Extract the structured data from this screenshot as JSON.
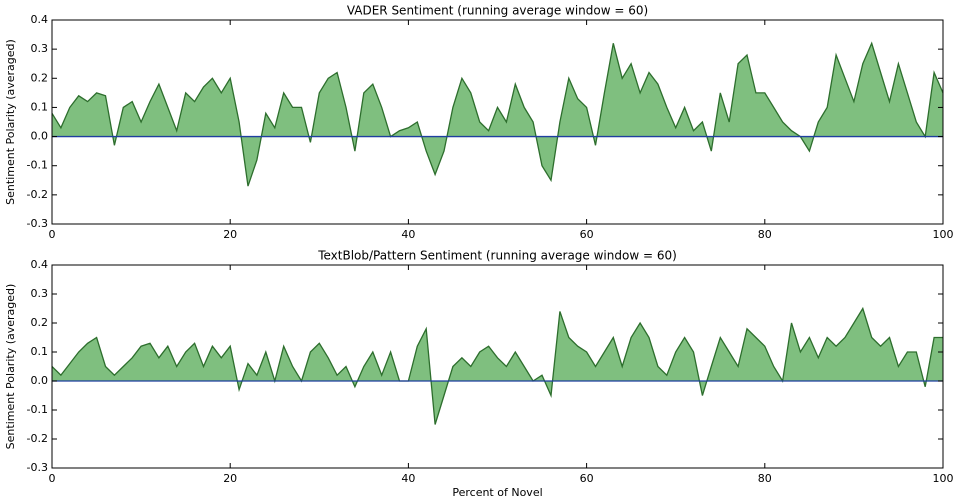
{
  "chart_data": [
    {
      "type": "area",
      "title": "VADER Sentiment (running average window = 60)",
      "ylabel": "Sentiment Polarity (averaged)",
      "x": [
        0,
        1,
        2,
        3,
        4,
        5,
        6,
        7,
        8,
        9,
        10,
        11,
        12,
        13,
        14,
        15,
        16,
        17,
        18,
        19,
        20,
        21,
        22,
        23,
        24,
        25,
        26,
        27,
        28,
        29,
        30,
        31,
        32,
        33,
        34,
        35,
        36,
        37,
        38,
        39,
        40,
        41,
        42,
        43,
        44,
        45,
        46,
        47,
        48,
        49,
        50,
        51,
        52,
        53,
        54,
        55,
        56,
        57,
        58,
        59,
        60,
        61,
        62,
        63,
        64,
        65,
        66,
        67,
        68,
        69,
        70,
        71,
        72,
        73,
        74,
        75,
        76,
        77,
        78,
        79,
        80,
        81,
        82,
        83,
        84,
        85,
        86,
        87,
        88,
        89,
        90,
        91,
        92,
        93,
        94,
        95,
        96,
        97,
        98,
        99,
        100
      ],
      "values": [
        0.08,
        0.03,
        0.1,
        0.14,
        0.12,
        0.15,
        0.14,
        -0.03,
        0.1,
        0.12,
        0.05,
        0.12,
        0.18,
        0.1,
        0.02,
        0.15,
        0.12,
        0.17,
        0.2,
        0.15,
        0.2,
        0.05,
        -0.17,
        -0.08,
        0.08,
        0.03,
        0.15,
        0.1,
        0.1,
        -0.02,
        0.15,
        0.2,
        0.22,
        0.1,
        -0.05,
        0.15,
        0.18,
        0.1,
        0.0,
        0.02,
        0.03,
        0.05,
        -0.05,
        -0.13,
        -0.05,
        0.1,
        0.2,
        0.15,
        0.05,
        0.02,
        0.1,
        0.05,
        0.18,
        0.1,
        0.05,
        -0.1,
        -0.15,
        0.05,
        0.2,
        0.13,
        0.1,
        -0.03,
        0.15,
        0.32,
        0.2,
        0.25,
        0.15,
        0.22,
        0.18,
        0.1,
        0.03,
        0.1,
        0.02,
        0.05,
        -0.05,
        0.15,
        0.05,
        0.25,
        0.28,
        0.15,
        0.15,
        0.1,
        0.05,
        0.02,
        0.0,
        -0.05,
        0.05,
        0.1,
        0.28,
        0.2,
        0.12,
        0.25,
        0.32,
        0.22,
        0.12,
        0.25,
        0.15,
        0.05,
        0.0,
        0.22,
        0.15
      ],
      "color": "#2d6e2d",
      "fill_color": "#7fbf7f",
      "baseline": 0,
      "baseline_color": "#1f3f9f",
      "xlim": [
        0,
        100
      ],
      "xticks": [
        0,
        20,
        40,
        60,
        80,
        100
      ],
      "ylim": [
        -0.3,
        0.4
      ],
      "yticks": [
        -0.3,
        -0.2,
        -0.1,
        {
          "value": 0,
          "label": "0.0"
        },
        0.1,
        0.2,
        0.3,
        0.4
      ]
    },
    {
      "type": "area",
      "title": "TextBlob/Pattern Sentiment (running average window = 60)",
      "ylabel": "Sentiment Polarity (averaged)",
      "xlabel": "Percent of Novel",
      "x": [
        0,
        1,
        2,
        3,
        4,
        5,
        6,
        7,
        8,
        9,
        10,
        11,
        12,
        13,
        14,
        15,
        16,
        17,
        18,
        19,
        20,
        21,
        22,
        23,
        24,
        25,
        26,
        27,
        28,
        29,
        30,
        31,
        32,
        33,
        34,
        35,
        36,
        37,
        38,
        39,
        40,
        41,
        42,
        43,
        44,
        45,
        46,
        47,
        48,
        49,
        50,
        51,
        52,
        53,
        54,
        55,
        56,
        57,
        58,
        59,
        60,
        61,
        62,
        63,
        64,
        65,
        66,
        67,
        68,
        69,
        70,
        71,
        72,
        73,
        74,
        75,
        76,
        77,
        78,
        79,
        80,
        81,
        82,
        83,
        84,
        85,
        86,
        87,
        88,
        89,
        90,
        91,
        92,
        93,
        94,
        95,
        96,
        97,
        98,
        99,
        100
      ],
      "values": [
        0.05,
        0.02,
        0.06,
        0.1,
        0.13,
        0.15,
        0.05,
        0.02,
        0.05,
        0.08,
        0.12,
        0.13,
        0.08,
        0.12,
        0.05,
        0.1,
        0.13,
        0.05,
        0.12,
        0.08,
        0.12,
        -0.03,
        0.06,
        0.02,
        0.1,
        0.0,
        0.12,
        0.05,
        0.0,
        0.1,
        0.13,
        0.08,
        0.02,
        0.05,
        -0.02,
        0.05,
        0.1,
        0.02,
        0.1,
        0.0,
        0.0,
        0.12,
        0.18,
        -0.15,
        -0.05,
        0.05,
        0.08,
        0.05,
        0.1,
        0.12,
        0.08,
        0.05,
        0.1,
        0.05,
        0.0,
        0.02,
        -0.05,
        0.24,
        0.15,
        0.12,
        0.1,
        0.05,
        0.1,
        0.15,
        0.05,
        0.15,
        0.2,
        0.15,
        0.05,
        0.02,
        0.1,
        0.15,
        0.1,
        -0.05,
        0.05,
        0.15,
        0.1,
        0.05,
        0.18,
        0.15,
        0.12,
        0.05,
        0.0,
        0.2,
        0.1,
        0.15,
        0.08,
        0.15,
        0.12,
        0.15,
        0.2,
        0.25,
        0.15,
        0.12,
        0.15,
        0.05,
        0.1,
        0.1,
        -0.02,
        0.15,
        0.15
      ],
      "color": "#2d6e2d",
      "fill_color": "#7fbf7f",
      "baseline": 0,
      "baseline_color": "#1f3f9f",
      "xlim": [
        0,
        100
      ],
      "xticks": [
        0,
        20,
        40,
        60,
        80,
        100
      ],
      "ylim": [
        -0.3,
        0.4
      ],
      "yticks": [
        -0.3,
        -0.2,
        -0.1,
        {
          "value": 0,
          "label": "0.0"
        },
        0.1,
        0.2,
        0.3,
        0.4
      ]
    }
  ]
}
